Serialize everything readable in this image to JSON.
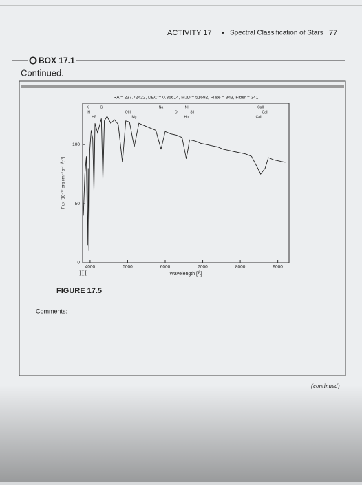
{
  "header": {
    "activity": "ACTIVITY 17",
    "separator": "•",
    "section": "Spectral Classification of Stars",
    "page_number": "77"
  },
  "box": {
    "label": "BOX 17.1",
    "continued": "Continued."
  },
  "chart_data": {
    "type": "line",
    "title": "RA = 237.72422, DEC = 0.36614, MJD = 51692, Plate = 343, Fiber = 341",
    "x_label": "Wavelength [Å]",
    "y_label": "Flux [10⁻¹⁷ erg cm⁻² s⁻¹ Å⁻¹]",
    "x": [
      3820,
      3860,
      3900,
      3934,
      3950,
      3968,
      3990,
      4030,
      4070,
      4102,
      4130,
      4200,
      4300,
      4340,
      4380,
      4450,
      4550,
      4650,
      4750,
      4861,
      4950,
      5050,
      5175,
      5300,
      5450,
      5600,
      5750,
      5890,
      6000,
      6150,
      6300,
      6450,
      6563,
      6650,
      6800,
      6950,
      7100,
      7250,
      7400,
      7550,
      7700,
      7850,
      8000,
      8150,
      8300,
      8498,
      8542,
      8662,
      8750,
      8900,
      9050,
      9200
    ],
    "values": [
      40,
      75,
      90,
      15,
      80,
      10,
      95,
      112,
      105,
      60,
      118,
      110,
      122,
      70,
      120,
      124,
      118,
      121,
      117,
      85,
      120,
      119,
      98,
      118,
      116,
      114,
      112,
      96,
      111,
      109,
      108,
      106,
      88,
      104,
      103,
      101,
      100,
      99,
      98,
      96,
      95,
      94,
      93,
      92,
      90,
      78,
      75,
      80,
      89,
      87,
      86,
      85
    ],
    "color": "#222222",
    "xlim": [
      3800,
      9300
    ],
    "ylim": [
      0,
      135
    ],
    "xticks": [
      4000,
      5000,
      6000,
      7000,
      8000,
      9000
    ],
    "yticks": [
      0,
      50,
      100
    ],
    "annotations": [
      {
        "text": "K",
        "x": 3934
      },
      {
        "text": "H",
        "x": 3968
      },
      {
        "text": "Hδ",
        "x": 4102
      },
      {
        "text": "G",
        "x": 4300
      },
      {
        "text": "OIII",
        "x": 5007
      },
      {
        "text": "Mg",
        "x": 5175
      },
      {
        "text": "Na",
        "x": 5890
      },
      {
        "text": "OI",
        "x": 6300
      },
      {
        "text": "Hα",
        "x": 6563
      },
      {
        "text": "NII",
        "x": 6584
      },
      {
        "text": "SII",
        "x": 6720
      },
      {
        "text": "CaII",
        "x": 8498
      },
      {
        "text": "CaII",
        "x": 8542
      },
      {
        "text": "CaII",
        "x": 8662
      }
    ]
  },
  "handwritten": "III",
  "figure_label": "FIGURE 17.5",
  "comments_label": "Comments:",
  "footer": "(continued)"
}
